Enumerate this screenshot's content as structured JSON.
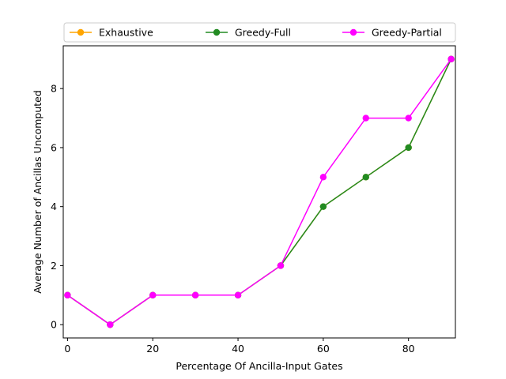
{
  "chart_data": {
    "type": "line",
    "title": "",
    "xlabel": "Percentage Of Ancilla-Input Gates",
    "ylabel": "Average Number of Ancillas Uncomputed",
    "x": [
      0,
      10,
      20,
      30,
      40,
      50,
      60,
      70,
      80,
      90
    ],
    "xlim": [
      -1,
      91
    ],
    "ylim": [
      -0.45,
      9.45
    ],
    "xticks": [
      0,
      20,
      40,
      60,
      80
    ],
    "yticks": [
      0,
      2,
      4,
      6,
      8
    ],
    "grid": false,
    "legend_position": "top",
    "series": [
      {
        "name": "Exhaustive",
        "color": "#ffa500",
        "values": [
          1,
          0,
          1,
          1,
          1,
          2,
          4,
          5,
          6,
          9
        ]
      },
      {
        "name": "Greedy-Full",
        "color": "#228b22",
        "values": [
          1,
          0,
          1,
          1,
          1,
          2,
          4,
          5,
          6,
          9
        ]
      },
      {
        "name": "Greedy-Partial",
        "color": "#ff00ff",
        "values": [
          1,
          0,
          1,
          1,
          1,
          2,
          5,
          7,
          7,
          9
        ]
      }
    ]
  }
}
